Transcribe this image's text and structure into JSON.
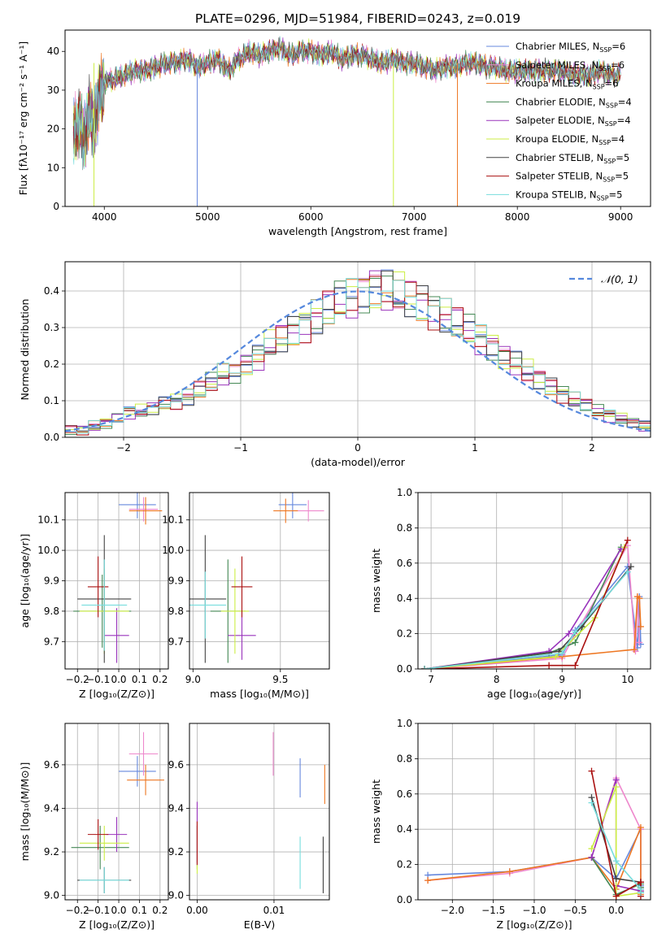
{
  "figure": {
    "suptitle": "PLATE=0296, MJD=51984, FIBERID=0243, z=0.019",
    "legend_entries": [
      {
        "label": "Chabrier MILES, N",
        "sub": "SSP",
        "tail": "=6",
        "color": "#6688dd"
      },
      {
        "label": "Salpeter MILES, N",
        "sub": "SSP",
        "tail": "=6",
        "color": "#ee88cc"
      },
      {
        "label": "Kroupa MILES, N",
        "sub": "SSP",
        "tail": "=6",
        "color": "#ee7722"
      },
      {
        "label": "Chabrier ELODIE, N",
        "sub": "SSP",
        "tail": "=4",
        "color": "#448855"
      },
      {
        "label": "Salpeter ELODIE, N",
        "sub": "SSP",
        "tail": "=4",
        "color": "#9933bb"
      },
      {
        "label": "Kroupa ELODIE, N",
        "sub": "SSP",
        "tail": "=4",
        "color": "#ccee44"
      },
      {
        "label": "Chabrier STELIB, N",
        "sub": "SSP",
        "tail": "=5",
        "color": "#444444"
      },
      {
        "label": "Salpeter STELIB, N",
        "sub": "SSP",
        "tail": "=5",
        "color": "#aa1111"
      },
      {
        "label": "Kroupa STELIB, N",
        "sub": "SSP",
        "tail": "=5",
        "color": "#77dddd"
      }
    ],
    "hist_legend": "𝒩(0, 1)",
    "hist_legend_color": "#5588dd"
  },
  "chart_data": [
    {
      "type": "line",
      "panel": "spectrum",
      "xlabel": "wavelength [Angstrom, rest frame]",
      "ylabel": "Flux [fλ10⁻¹⁷ erg cm⁻² s⁻¹ A⁻¹]",
      "xlim": [
        3620,
        9290
      ],
      "ylim": [
        0,
        45.5
      ],
      "xticks": [
        4000,
        5000,
        6000,
        7000,
        8000,
        9000
      ],
      "yticks": [
        0,
        10,
        20,
        30,
        40
      ],
      "x": [
        3700,
        3750,
        3800,
        3850,
        3900,
        3950,
        4000,
        4100,
        4200,
        4300,
        4400,
        4500,
        4600,
        4700,
        4800,
        4900,
        5000,
        5100,
        5200,
        5300,
        5400,
        5500,
        5600,
        5700,
        5800,
        5900,
        6000,
        6100,
        6200,
        6300,
        6400,
        6500,
        6600,
        6700,
        6800,
        6900,
        7000,
        7100,
        7200,
        7300,
        7400,
        7500,
        7600,
        7700,
        7800,
        7900,
        8000,
        8100,
        8200,
        8300,
        8400,
        8500,
        8600,
        8700,
        8800,
        8900,
        9000
      ],
      "y": [
        19,
        22,
        17,
        24,
        21,
        28,
        32,
        33,
        34,
        35,
        35,
        36,
        37,
        37,
        38,
        36,
        37,
        38,
        35,
        38,
        40,
        39,
        40,
        41,
        39,
        40,
        40,
        39,
        40,
        38,
        39,
        39,
        38,
        37,
        38,
        37,
        37,
        36,
        35,
        36,
        36,
        37,
        37,
        36,
        36,
        35,
        35,
        35,
        35,
        35,
        35,
        34,
        34,
        34,
        35,
        34,
        34
      ]
    },
    {
      "type": "bar",
      "panel": "residual-histogram",
      "xlabel": "(data-model)/error",
      "ylabel": "Normed distribution",
      "xlim": [
        -2.5,
        2.5
      ],
      "ylim": [
        0,
        0.48
      ],
      "xticks": [
        -2,
        -1,
        0,
        1,
        2
      ],
      "xtick_labels": [
        "−2",
        "−1",
        "0",
        "1",
        "2"
      ],
      "yticks": [
        0.0,
        0.1,
        0.2,
        0.3,
        0.4
      ],
      "ytick_labels": [
        "0.0",
        "0.1",
        "0.2",
        "0.3",
        "0.4"
      ],
      "bin_edges_start": -2.5,
      "bin_width": 0.1,
      "values": [
        0.02,
        0.02,
        0.03,
        0.04,
        0.05,
        0.07,
        0.07,
        0.08,
        0.09,
        0.1,
        0.11,
        0.13,
        0.15,
        0.17,
        0.18,
        0.2,
        0.22,
        0.25,
        0.27,
        0.29,
        0.31,
        0.33,
        0.35,
        0.37,
        0.38,
        0.4,
        0.41,
        0.4,
        0.39,
        0.38,
        0.37,
        0.35,
        0.33,
        0.31,
        0.29,
        0.27,
        0.25,
        0.22,
        0.2,
        0.18,
        0.16,
        0.14,
        0.12,
        0.1,
        0.09,
        0.07,
        0.06,
        0.05,
        0.04,
        0.03
      ],
      "gaussian_curve": true
    },
    {
      "type": "scatter",
      "panel": "age-vs-Z",
      "xlabel": "Z [log₁₀(Z/Z⊙)]",
      "ylabel": "age  [log₁₀(age/yr)]",
      "xlim": [
        -0.26,
        0.24
      ],
      "ylim": [
        9.61,
        10.19
      ],
      "xticks": [
        -0.2,
        -0.1,
        0.0,
        0.1,
        0.2
      ],
      "xtick_labels": [
        "−0.2",
        "−0.1",
        "0.0",
        "0.1",
        "0.2"
      ],
      "yticks": [
        9.7,
        9.8,
        9.9,
        10.0,
        10.1
      ],
      "ytick_labels": [
        "9.7",
        "9.8",
        "9.9",
        "10.0",
        "10.1"
      ],
      "points": [
        {
          "x": 0.09,
          "y": 10.15,
          "xerr": 0.09,
          "yerr": 0.045,
          "color": "#6688dd"
        },
        {
          "x": 0.12,
          "y": 10.135,
          "xerr": 0.07,
          "yerr": 0.04,
          "color": "#ee88cc"
        },
        {
          "x": 0.13,
          "y": 10.13,
          "xerr": 0.08,
          "yerr": 0.045,
          "color": "#ee7722"
        },
        {
          "x": -0.08,
          "y": 9.8,
          "xerr": 0.14,
          "yerr": 0.12,
          "color": "#448855"
        },
        {
          "x": -0.01,
          "y": 9.72,
          "xerr": 0.06,
          "yerr": 0.09,
          "color": "#9933bb"
        },
        {
          "x": -0.07,
          "y": 9.8,
          "xerr": 0.12,
          "yerr": 0.14,
          "color": "#ccee44"
        },
        {
          "x": -0.07,
          "y": 9.84,
          "xerr": 0.13,
          "yerr": 0.21,
          "color": "#444444"
        },
        {
          "x": -0.1,
          "y": 9.88,
          "xerr": 0.05,
          "yerr": 0.1,
          "color": "#aa1111"
        },
        {
          "x": -0.07,
          "y": 9.82,
          "xerr": 0.11,
          "yerr": 0.15,
          "color": "#77dddd"
        }
      ]
    },
    {
      "type": "scatter",
      "panel": "age-vs-mass",
      "xlabel": "mass [log₁₀(M/M⊙)]",
      "ylabel": "",
      "xlim": [
        8.98,
        9.78
      ],
      "ylim": [
        9.61,
        10.19
      ],
      "xticks": [
        9.0,
        9.5
      ],
      "xtick_labels": [
        "9.0",
        "9.5"
      ],
      "yticks": [
        9.7,
        9.8,
        9.9,
        10.0,
        10.1
      ],
      "ytick_labels": [
        "9.7",
        "9.8",
        "9.9",
        "10.0",
        "10.1"
      ],
      "points": [
        {
          "x": 9.57,
          "y": 10.15,
          "xerr": 0.08,
          "yerr": 0.045,
          "color": "#6688dd"
        },
        {
          "x": 9.66,
          "y": 10.13,
          "xerr": 0.09,
          "yerr": 0.035,
          "color": "#ee88cc"
        },
        {
          "x": 9.53,
          "y": 10.13,
          "xerr": 0.07,
          "yerr": 0.04,
          "color": "#ee7722"
        },
        {
          "x": 9.2,
          "y": 9.8,
          "xerr": 0.1,
          "yerr": 0.17,
          "color": "#448855"
        },
        {
          "x": 9.28,
          "y": 9.72,
          "xerr": 0.08,
          "yerr": 0.08,
          "color": "#9933bb"
        },
        {
          "x": 9.24,
          "y": 9.8,
          "xerr": 0.08,
          "yerr": 0.14,
          "color": "#ccee44"
        },
        {
          "x": 9.07,
          "y": 9.84,
          "xerr": 0.12,
          "yerr": 0.21,
          "color": "#444444"
        },
        {
          "x": 9.28,
          "y": 9.88,
          "xerr": 0.06,
          "yerr": 0.1,
          "color": "#aa1111"
        },
        {
          "x": 9.07,
          "y": 9.82,
          "xerr": 0.12,
          "yerr": 0.11,
          "color": "#77dddd"
        }
      ]
    },
    {
      "type": "line",
      "panel": "mass-weight-vs-age",
      "xlabel": "age  [log₁₀(age/yr)]",
      "ylabel": "mass weight",
      "xlim": [
        6.8,
        10.35
      ],
      "ylim": [
        0,
        1.0
      ],
      "xticks": [
        7,
        8,
        9,
        10
      ],
      "yticks": [
        0.0,
        0.2,
        0.4,
        0.6,
        0.8,
        1.0
      ],
      "ytick_labels": [
        "0.0",
        "0.2",
        "0.4",
        "0.6",
        "0.8",
        "1.0"
      ],
      "series": [
        {
          "x": [
            6.9,
            9.0,
            9.2,
            10.0,
            10.15,
            10.18,
            10.2
          ],
          "y": [
            0.0,
            0.08,
            0.22,
            0.58,
            0.12,
            0.41,
            0.14
          ],
          "color": "#6688dd"
        },
        {
          "x": [
            6.9,
            9.0,
            9.2,
            10.0,
            10.12,
            10.15,
            10.18
          ],
          "y": [
            0.0,
            0.06,
            0.2,
            0.7,
            0.1,
            0.41,
            0.15
          ],
          "color": "#ee88cc"
        },
        {
          "x": [
            6.9,
            9.0,
            10.1,
            10.15,
            10.18,
            10.2
          ],
          "y": [
            0.0,
            0.07,
            0.11,
            0.41,
            0.4,
            0.24
          ],
          "color": "#ee7722"
        },
        {
          "x": [
            6.9,
            8.8,
            9.2,
            9.9
          ],
          "y": [
            0.0,
            0.09,
            0.15,
            0.69
          ],
          "color": "#448855"
        },
        {
          "x": [
            6.9,
            8.8,
            9.1,
            9.9
          ],
          "y": [
            0.0,
            0.1,
            0.2,
            0.68
          ],
          "color": "#9933bb"
        },
        {
          "x": [
            6.9,
            8.9,
            9.5,
            9.95
          ],
          "y": [
            0.0,
            0.07,
            0.29,
            0.69
          ],
          "color": "#ccee44"
        },
        {
          "x": [
            6.9,
            8.95,
            9.3,
            10.05
          ],
          "y": [
            0.0,
            0.1,
            0.24,
            0.58
          ],
          "color": "#444444"
        },
        {
          "x": [
            6.9,
            8.8,
            9.2,
            10.0
          ],
          "y": [
            0.0,
            0.02,
            0.02,
            0.73
          ],
          "color": "#aa1111"
        },
        {
          "x": [
            6.9,
            9.0,
            9.2,
            10.0
          ],
          "y": [
            0.0,
            0.09,
            0.21,
            0.55
          ],
          "color": "#77dddd"
        }
      ]
    },
    {
      "type": "scatter",
      "panel": "mass-vs-Z",
      "xlabel": "Z [log₁₀(Z/Z⊙)]",
      "ylabel": "mass [log₁₀(M/M⊙)]",
      "xlim": [
        -0.26,
        0.24
      ],
      "ylim": [
        8.98,
        9.79
      ],
      "xticks": [
        -0.2,
        -0.1,
        0.0,
        0.1,
        0.2
      ],
      "xtick_labels": [
        "−0.2",
        "−0.1",
        "0.0",
        "0.1",
        "0.2"
      ],
      "yticks": [
        9.0,
        9.2,
        9.4,
        9.6
      ],
      "ytick_labels": [
        "9.0",
        "9.2",
        "9.4",
        "9.6"
      ],
      "points": [
        {
          "x": 0.09,
          "y": 9.57,
          "xerr": 0.09,
          "yerr": 0.07,
          "color": "#6688dd"
        },
        {
          "x": 0.12,
          "y": 9.65,
          "xerr": 0.07,
          "yerr": 0.1,
          "color": "#ee88cc"
        },
        {
          "x": 0.13,
          "y": 9.53,
          "xerr": 0.09,
          "yerr": 0.07,
          "color": "#ee7722"
        },
        {
          "x": -0.09,
          "y": 9.22,
          "xerr": 0.14,
          "yerr": 0.1,
          "color": "#448855"
        },
        {
          "x": -0.01,
          "y": 9.28,
          "xerr": 0.05,
          "yerr": 0.08,
          "color": "#9933bb"
        },
        {
          "x": -0.07,
          "y": 9.24,
          "xerr": 0.12,
          "yerr": 0.08,
          "color": "#ccee44"
        },
        {
          "x": -0.07,
          "y": 9.07,
          "xerr": 0.13,
          "yerr": 0.06,
          "color": "#444444"
        },
        {
          "x": -0.1,
          "y": 9.28,
          "xerr": 0.05,
          "yerr": 0.07,
          "color": "#aa1111"
        },
        {
          "x": -0.07,
          "y": 9.07,
          "xerr": 0.12,
          "yerr": 0.06,
          "color": "#77dddd"
        }
      ]
    },
    {
      "type": "scatter",
      "panel": "mass-vs-EBV",
      "xlabel": "E(B-V)",
      "ylabel": "",
      "xlim": [
        -0.001,
        0.0172
      ],
      "ylim": [
        8.98,
        9.79
      ],
      "xticks": [
        0.0,
        0.01
      ],
      "xtick_labels": [
        "0.00",
        "0.01"
      ],
      "yticks": [
        9.0,
        9.2,
        9.4,
        9.6
      ],
      "ytick_labels": [
        "9.0",
        "9.2",
        "9.4",
        "9.6"
      ],
      "points": [
        {
          "x": 0.0134,
          "y": 9.54,
          "xerr": 0,
          "yerr": 0.09,
          "color": "#6688dd"
        },
        {
          "x": 0.0099,
          "y": 9.65,
          "xerr": 0,
          "yerr": 0.1,
          "color": "#ee88cc"
        },
        {
          "x": 0.0166,
          "y": 9.51,
          "xerr": 0,
          "yerr": 0.09,
          "color": "#ee7722"
        },
        {
          "x": 0.0,
          "y": 9.22,
          "xerr": 0,
          "yerr": 0.1,
          "color": "#448855"
        },
        {
          "x": 0.0,
          "y": 9.29,
          "xerr": 0,
          "yerr": 0.14,
          "color": "#9933bb"
        },
        {
          "x": 0.0,
          "y": 9.12,
          "xerr": 0,
          "yerr": 0.02,
          "color": "#ccee44"
        },
        {
          "x": 0.0164,
          "y": 9.14,
          "xerr": 0,
          "yerr": 0.13,
          "color": "#444444"
        },
        {
          "x": 0.0,
          "y": 9.24,
          "xerr": 0,
          "yerr": 0.1,
          "color": "#aa1111"
        },
        {
          "x": 0.0134,
          "y": 9.15,
          "xerr": 0,
          "yerr": 0.12,
          "color": "#77dddd"
        }
      ]
    },
    {
      "type": "line",
      "panel": "mass-weight-vs-Z",
      "xlabel": "Z [log₁₀(Z/Z⊙)]",
      "ylabel": "mass weight",
      "xlim": [
        -2.42,
        0.42
      ],
      "ylim": [
        0,
        1.0
      ],
      "xticks": [
        -2.0,
        -1.5,
        -1.0,
        -0.5,
        0.0
      ],
      "xtick_labels": [
        "−2.0",
        "−1.5",
        "−1.0",
        "−0.5",
        "0.0"
      ],
      "yticks": [
        0.0,
        0.2,
        0.4,
        0.6,
        0.8,
        1.0
      ],
      "ytick_labels": [
        "0.0",
        "0.2",
        "0.4",
        "0.6",
        "0.8",
        "1.0"
      ],
      "series": [
        {
          "x": [
            -2.3,
            -1.3,
            -0.3,
            0.0,
            0.3,
            0.3,
            0.3
          ],
          "y": [
            0.14,
            0.16,
            0.24,
            0.12,
            0.4,
            0.05,
            0.08
          ],
          "color": "#6688dd"
        },
        {
          "x": [
            -2.3,
            -1.3,
            -0.3,
            0.0,
            0.3,
            0.3,
            0.3
          ],
          "y": [
            0.11,
            0.15,
            0.24,
            0.69,
            0.4,
            0.04,
            0.06
          ],
          "color": "#ee88cc"
        },
        {
          "x": [
            -2.3,
            -1.3,
            -0.3,
            0.0,
            0.3,
            0.3,
            0.3
          ],
          "y": [
            0.11,
            0.16,
            0.24,
            0.06,
            0.41,
            0.03,
            0.05
          ],
          "color": "#ee7722"
        },
        {
          "x": [
            -0.3,
            0.0,
            0.3,
            0.3
          ],
          "y": [
            0.24,
            0.03,
            0.09,
            0.07
          ],
          "color": "#448855"
        },
        {
          "x": [
            -0.3,
            0.0,
            0.0,
            0.3
          ],
          "y": [
            0.24,
            0.68,
            0.08,
            0.05
          ],
          "color": "#9933bb"
        },
        {
          "x": [
            -0.3,
            0.0,
            0.0,
            0.3
          ],
          "y": [
            0.29,
            0.64,
            0.02,
            0.04
          ],
          "color": "#ccee44"
        },
        {
          "x": [
            -0.3,
            0.0,
            0.3,
            0.3
          ],
          "y": [
            0.58,
            0.12,
            0.1,
            0.04
          ],
          "color": "#444444"
        },
        {
          "x": [
            -0.3,
            0.0,
            0.3,
            0.3
          ],
          "y": [
            0.73,
            0.02,
            0.1,
            0.02
          ],
          "color": "#aa1111"
        },
        {
          "x": [
            -0.3,
            0.0,
            0.3,
            0.3
          ],
          "y": [
            0.55,
            0.22,
            0.06,
            0.04
          ],
          "color": "#77dddd"
        }
      ]
    }
  ]
}
